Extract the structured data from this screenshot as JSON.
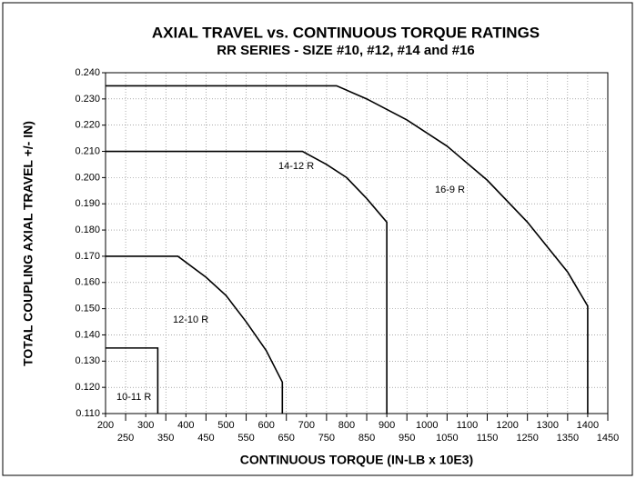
{
  "chart_data": {
    "type": "line",
    "title": "AXIAL TRAVEL vs. CONTINUOUS TORQUE RATINGS",
    "subtitle": "RR SERIES - SIZE #10, #12, #14 and #16",
    "x_label": "CONTINUOUS TORQUE (IN-LB x 10E3)",
    "y_label": "TOTAL COUPLING AXIAL TRAVEL +/- IN)",
    "xlim": [
      200,
      1450
    ],
    "xticks": [
      200,
      250,
      300,
      350,
      400,
      450,
      500,
      550,
      600,
      650,
      700,
      750,
      800,
      850,
      900,
      950,
      1000,
      1050,
      1100,
      1150,
      1200,
      1250,
      1300,
      1350,
      1400,
      1450
    ],
    "ylim": [
      0.11,
      0.24
    ],
    "yticks": [
      {
        "value": 0.11,
        "label": "0.110"
      },
      {
        "value": 0.12,
        "label": "0.120"
      },
      {
        "value": 0.13,
        "label": "0.130"
      },
      {
        "value": 0.14,
        "label": "0.140"
      },
      {
        "value": 0.15,
        "label": "0.150"
      },
      {
        "value": 0.16,
        "label": "0.160"
      },
      {
        "value": 0.17,
        "label": "0.170"
      },
      {
        "value": 0.18,
        "label": "0.180"
      },
      {
        "value": 0.19,
        "label": "0.190"
      },
      {
        "value": 0.2,
        "label": "0.200"
      },
      {
        "value": 0.21,
        "label": "0.210"
      },
      {
        "value": 0.22,
        "label": "0.220"
      },
      {
        "value": 0.23,
        "label": "0.230"
      },
      {
        "value": 0.24,
        "label": "0.240"
      }
    ],
    "grid": true,
    "series": [
      {
        "name": "10-11 R",
        "color": "#000000",
        "x": [
          200,
          330,
          330
        ],
        "values": [
          0.135,
          0.135,
          0.11
        ]
      },
      {
        "name": "12-10 R",
        "color": "#000000",
        "x": [
          200,
          380,
          450,
          500,
          550,
          600,
          640,
          640
        ],
        "values": [
          0.17,
          0.17,
          0.162,
          0.155,
          0.145,
          0.134,
          0.122,
          0.11
        ]
      },
      {
        "name": "14-12 R",
        "color": "#000000",
        "x": [
          200,
          690,
          750,
          800,
          850,
          900,
          900
        ],
        "values": [
          0.21,
          0.21,
          0.205,
          0.2,
          0.192,
          0.183,
          0.11
        ]
      },
      {
        "name": "16-9 R",
        "color": "#000000",
        "x": [
          200,
          775,
          850,
          950,
          1050,
          1150,
          1250,
          1350,
          1400,
          1400
        ],
        "values": [
          0.235,
          0.235,
          0.23,
          0.222,
          0.212,
          0.199,
          0.183,
          0.164,
          0.151,
          0.11
        ]
      }
    ]
  }
}
